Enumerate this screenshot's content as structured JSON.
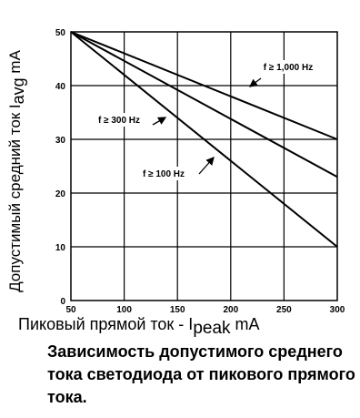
{
  "chart_data": {
    "type": "line",
    "ylabel": "Допустимый средний ток Iavg mA",
    "ylabel_parts": {
      "main": "Допустимый средний ток I",
      "sub": "avg",
      "unit": " mA"
    },
    "xlabel_parts": {
      "main": "Пиковый прямой ток - I",
      "sub": "peak",
      "unit": " mA"
    },
    "title": "Зависимость допустимого среднего тока светодиода от пикового прямого тока.",
    "xlim": [
      50,
      300
    ],
    "ylim": [
      0,
      50
    ],
    "x_ticks": [
      50,
      100,
      150,
      200,
      250,
      300
    ],
    "y_ticks": [
      0,
      10,
      20,
      30,
      40,
      50
    ],
    "grid": true,
    "series": [
      {
        "name": "f ≥ 1,000 Hz",
        "x": [
          50,
          300
        ],
        "y": [
          50,
          30
        ]
      },
      {
        "name": "f ≥ 300 Hz",
        "x": [
          50,
          300
        ],
        "y": [
          50,
          23
        ]
      },
      {
        "name": "f ≥ 100 Hz",
        "x": [
          50,
          300
        ],
        "y": [
          50,
          10
        ]
      }
    ]
  }
}
